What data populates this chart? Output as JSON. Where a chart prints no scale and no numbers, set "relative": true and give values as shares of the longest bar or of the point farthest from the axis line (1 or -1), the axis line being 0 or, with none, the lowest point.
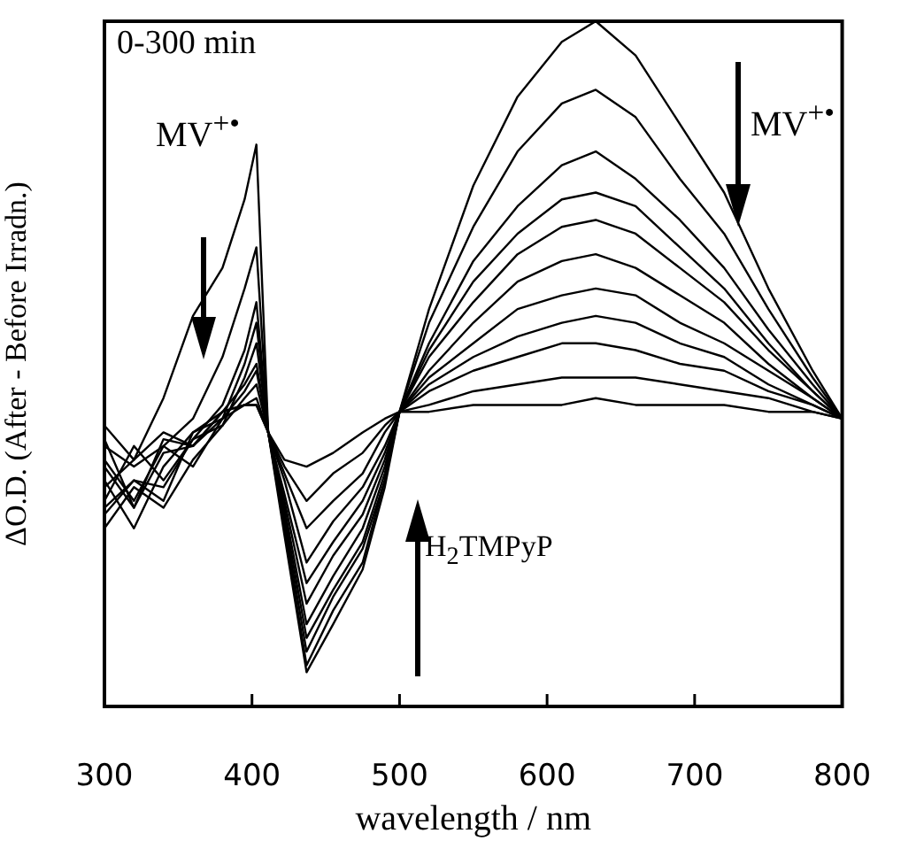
{
  "chart_data": {
    "type": "line",
    "relative": true,
    "xlabel": "wavelength / nm",
    "ylabel": "ΔO.D. (After - Before Irradn.)",
    "annotations": [
      "0-300 min",
      "MV$^{+•}$",
      "MV$^{+•}$",
      "H$_{2}$TMPyP"
    ],
    "x": [
      300,
      320,
      340,
      360,
      380,
      395,
      403,
      411,
      422,
      437,
      455,
      475,
      490,
      500,
      520,
      550,
      580,
      610,
      633,
      660,
      690,
      720,
      750,
      780,
      800
    ],
    "xlim": [
      300,
      800
    ],
    "xticks": [
      300,
      400,
      500,
      600,
      700,
      800
    ],
    "marker": "none",
    "legend": false,
    "series": [
      {
        "color": "#000000",
        "values": [
          0.32,
          0.36,
          0.45,
          0.57,
          0.64,
          0.74,
          0.82,
          0.4,
          0.25,
          0.05,
          0.12,
          0.2,
          0.32,
          0.43,
          0.58,
          0.76,
          0.89,
          0.97,
          1.0,
          0.95,
          0.85,
          0.75,
          0.61,
          0.49,
          0.42
        ]
      },
      {
        "color": "#000000",
        "values": [
          0.36,
          0.3,
          0.38,
          0.42,
          0.51,
          0.61,
          0.67,
          0.4,
          0.26,
          0.06,
          0.14,
          0.21,
          0.33,
          0.43,
          0.56,
          0.7,
          0.81,
          0.88,
          0.9,
          0.86,
          0.77,
          0.69,
          0.58,
          0.48,
          0.42
        ]
      },
      {
        "color": "#000000",
        "values": [
          0.29,
          0.33,
          0.32,
          0.39,
          0.44,
          0.52,
          0.59,
          0.4,
          0.27,
          0.08,
          0.16,
          0.23,
          0.33,
          0.43,
          0.53,
          0.65,
          0.73,
          0.79,
          0.81,
          0.77,
          0.71,
          0.64,
          0.55,
          0.47,
          0.42
        ]
      },
      {
        "color": "#000000",
        "values": [
          0.39,
          0.29,
          0.39,
          0.38,
          0.42,
          0.5,
          0.56,
          0.4,
          0.28,
          0.1,
          0.17,
          0.24,
          0.34,
          0.43,
          0.52,
          0.62,
          0.69,
          0.74,
          0.75,
          0.73,
          0.67,
          0.61,
          0.53,
          0.46,
          0.42
        ]
      },
      {
        "color": "#000000",
        "values": [
          0.26,
          0.32,
          0.29,
          0.36,
          0.41,
          0.48,
          0.53,
          0.4,
          0.29,
          0.12,
          0.19,
          0.26,
          0.35,
          0.43,
          0.51,
          0.59,
          0.66,
          0.7,
          0.71,
          0.69,
          0.64,
          0.59,
          0.52,
          0.46,
          0.42
        ]
      },
      {
        "color": "#000000",
        "values": [
          0.33,
          0.26,
          0.35,
          0.4,
          0.43,
          0.47,
          0.5,
          0.4,
          0.3,
          0.15,
          0.22,
          0.28,
          0.36,
          0.43,
          0.49,
          0.56,
          0.62,
          0.65,
          0.66,
          0.64,
          0.6,
          0.56,
          0.5,
          0.45,
          0.42
        ]
      },
      {
        "color": "#000000",
        "values": [
          0.38,
          0.35,
          0.38,
          0.35,
          0.42,
          0.46,
          0.49,
          0.4,
          0.31,
          0.18,
          0.24,
          0.3,
          0.37,
          0.43,
          0.48,
          0.53,
          0.58,
          0.6,
          0.61,
          0.6,
          0.56,
          0.53,
          0.49,
          0.45,
          0.42
        ]
      },
      {
        "color": "#000000",
        "values": [
          0.3,
          0.38,
          0.33,
          0.39,
          0.41,
          0.45,
          0.47,
          0.4,
          0.33,
          0.21,
          0.27,
          0.32,
          0.38,
          0.43,
          0.47,
          0.51,
          0.54,
          0.56,
          0.57,
          0.56,
          0.53,
          0.51,
          0.47,
          0.44,
          0.42
        ]
      },
      {
        "color": "#000000",
        "values": [
          0.35,
          0.29,
          0.37,
          0.38,
          0.43,
          0.44,
          0.45,
          0.4,
          0.34,
          0.26,
          0.3,
          0.34,
          0.4,
          0.43,
          0.46,
          0.49,
          0.51,
          0.53,
          0.53,
          0.52,
          0.5,
          0.49,
          0.46,
          0.44,
          0.42
        ]
      },
      {
        "color": "#000000",
        "values": [
          0.28,
          0.33,
          0.3,
          0.4,
          0.42,
          0.44,
          0.44,
          0.4,
          0.35,
          0.3,
          0.34,
          0.37,
          0.41,
          0.43,
          0.44,
          0.46,
          0.47,
          0.48,
          0.48,
          0.48,
          0.47,
          0.46,
          0.45,
          0.43,
          0.42
        ]
      },
      {
        "color": "#000000",
        "values": [
          0.41,
          0.36,
          0.4,
          0.38,
          0.43,
          0.44,
          0.44,
          0.4,
          0.36,
          0.35,
          0.37,
          0.4,
          0.42,
          0.43,
          0.43,
          0.44,
          0.44,
          0.44,
          0.45,
          0.44,
          0.44,
          0.44,
          0.43,
          0.43,
          0.42
        ]
      }
    ]
  }
}
